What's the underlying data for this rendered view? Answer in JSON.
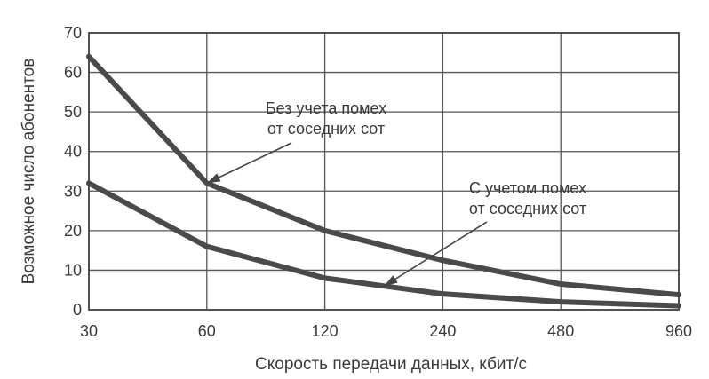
{
  "chart_data": {
    "type": "line",
    "title": "",
    "xlabel": "Скорость передачи данных, кбит/с",
    "ylabel": "Возможное число абонентов",
    "x_scale": "log2",
    "categories": [
      "30",
      "60",
      "120",
      "240",
      "480",
      "960"
    ],
    "x": [
      30,
      60,
      120,
      240,
      480,
      960
    ],
    "ylim": [
      0,
      70
    ],
    "yticks": [
      "0",
      "10",
      "20",
      "30",
      "40",
      "50",
      "60",
      "70"
    ],
    "grid": true,
    "legend": "none",
    "series": [
      {
        "values": [
          64,
          32,
          20,
          12.5,
          6.5,
          3.8
        ]
      },
      {
        "values": [
          32,
          16,
          8,
          4,
          2,
          1
        ]
      }
    ],
    "annotations": [
      {
        "lines": [
          "Без учета помех",
          "от соседних сот"
        ],
        "points_to": {
          "x": 60,
          "y": 32
        }
      },
      {
        "lines": [
          "С учетом помех",
          "от соседних сот"
        ],
        "points_to": {
          "x": 170,
          "y": 6
        }
      }
    ],
    "colors": {
      "line": "#4a4a4a",
      "grid": "#555555",
      "text": "#3a3a3a"
    }
  }
}
